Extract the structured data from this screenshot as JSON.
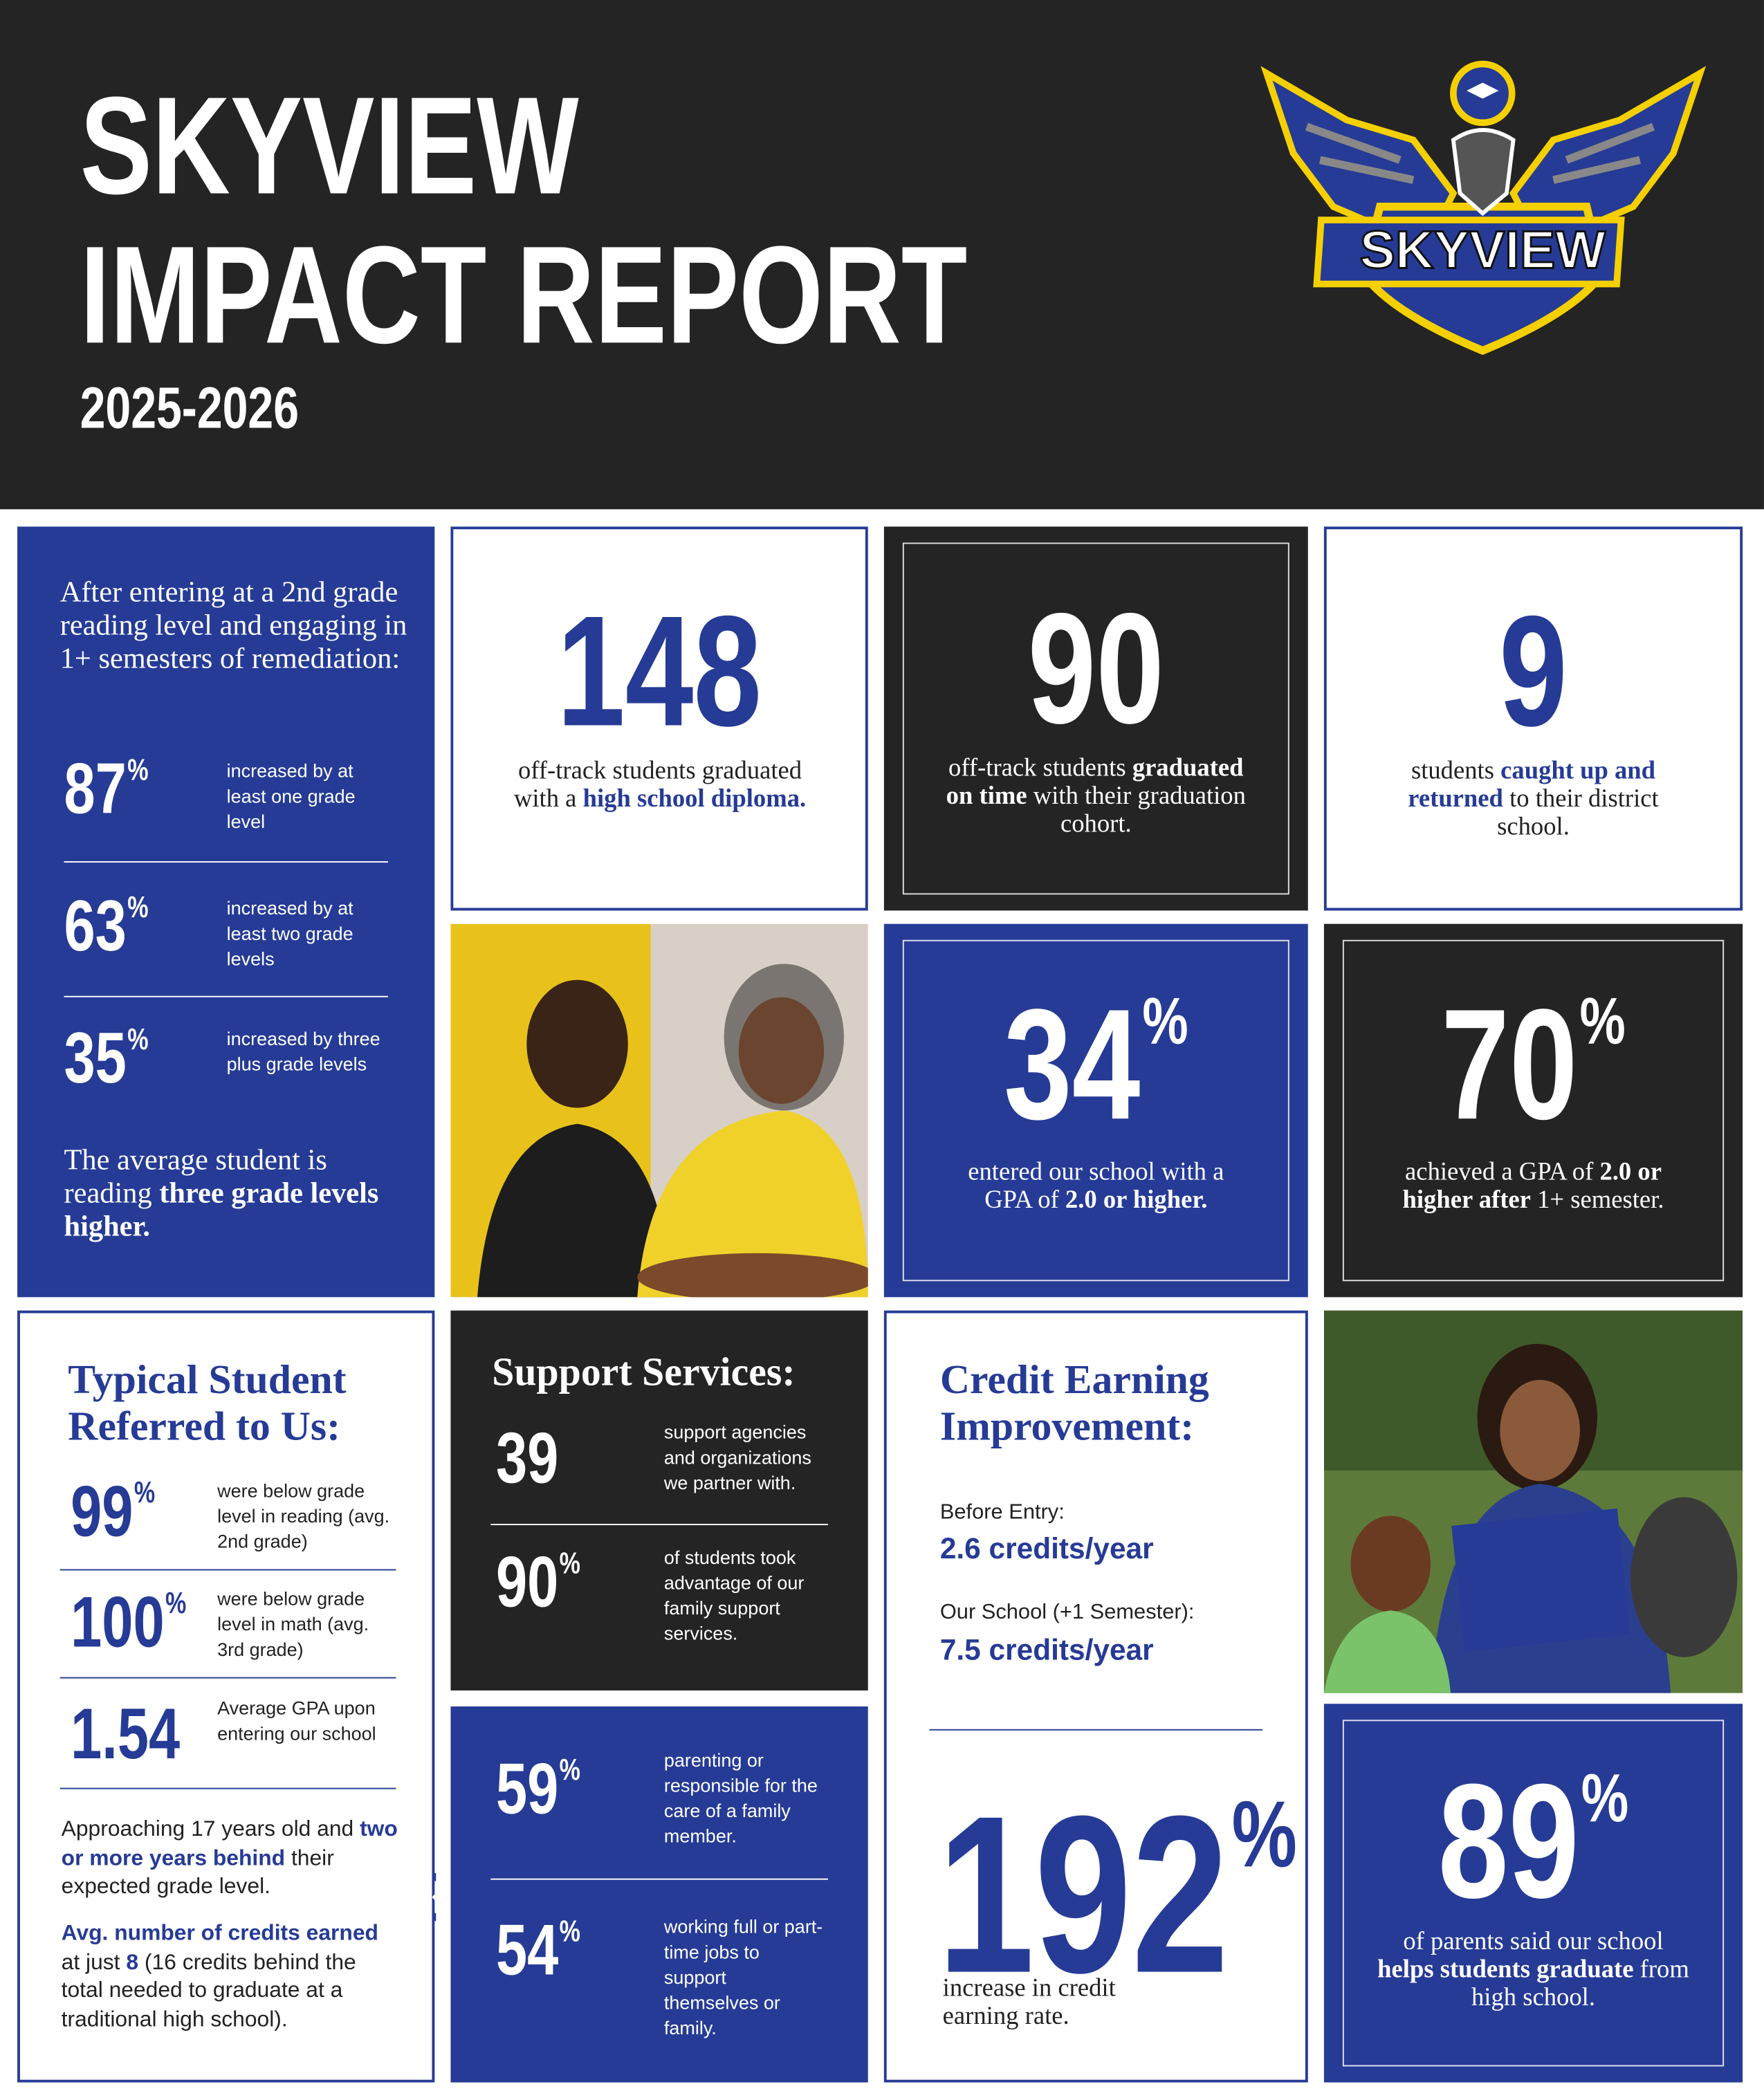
{
  "header": {
    "title_lines": [
      "SKYVIEW",
      "IMPACT REPORT"
    ],
    "year": "2025-2026"
  },
  "logo": {
    "text": "SKYVIEW"
  },
  "reading_card": {
    "intro": "After entering at a 2nd grade reading level and engaging in 1+ semesters of remediation:",
    "stats": [
      {
        "value": "87",
        "unit": "%",
        "label": "increased by at least one grade level"
      },
      {
        "value": "63",
        "unit": "%",
        "label": "increased by at least two grade levels"
      },
      {
        "value": "35",
        "unit": "%",
        "label": "increased by three plus grade levels"
      }
    ],
    "summary": [
      "The average student is reading ",
      "three grade levels higher."
    ]
  },
  "highlights": [
    {
      "value": "148",
      "text": [
        "off-track students graduated with a ",
        "high school diploma."
      ]
    },
    {
      "value": "90",
      "text": [
        "off-track students ",
        "graduated on time",
        " with their graduation cohort."
      ]
    },
    {
      "value": "9",
      "text": [
        "students ",
        "caught up and returned",
        " to their district school."
      ]
    },
    {
      "value": "34",
      "unit": "%",
      "text": [
        "entered our school with a GPA of ",
        "2.0 or higher."
      ]
    },
    {
      "value": "70",
      "unit": "%",
      "text": [
        "achieved a GPA of ",
        "2.0 or higher after",
        " 1+ semester."
      ]
    },
    {
      "value": "89",
      "unit": "%",
      "text": [
        "of parents said our school ",
        "helps students graduate",
        " from high school."
      ]
    }
  ],
  "typical_student": {
    "title": "Typical Student Referred to Us:",
    "stats": [
      {
        "value": "99",
        "unit": "%",
        "label": "were below grade level in reading (avg. 2nd grade)"
      },
      {
        "value": "100",
        "unit": "%",
        "label": "were below grade level in math (avg. 3rd grade)"
      },
      {
        "value": "1.54",
        "label": "Average GPA upon entering our school"
      }
    ],
    "paragraph_1": [
      "Approaching 17 years old and ",
      "two or more years behind",
      " their expected grade level."
    ],
    "paragraph_2": [
      "Avg. number of credits earned",
      " at just ",
      "8",
      " (16 credits behind the total needed to graduate at a traditional high school)."
    ]
  },
  "support_services": {
    "title": "Support Services:",
    "stats": [
      {
        "value": "39",
        "label": "support agencies and organizations we partner with."
      },
      {
        "value": "90",
        "unit": "%",
        "label": "of students took advantage of our family support services."
      },
      {
        "value": "59",
        "unit": "%",
        "label": "parenting or responsible for the care of a family member."
      },
      {
        "value": "54",
        "unit": "%",
        "label": "working full or part-time jobs to support themselves or family."
      }
    ]
  },
  "credit_earning": {
    "title": "Credit Earning Improvement:",
    "before_label": "Before Entry:",
    "before_value": "2.6 credits/year",
    "after_label": "Our School (+1 Semester):",
    "after_value": "7.5 credits/year",
    "value": "192",
    "unit": "%",
    "text": "increase in credit earning rate."
  }
}
